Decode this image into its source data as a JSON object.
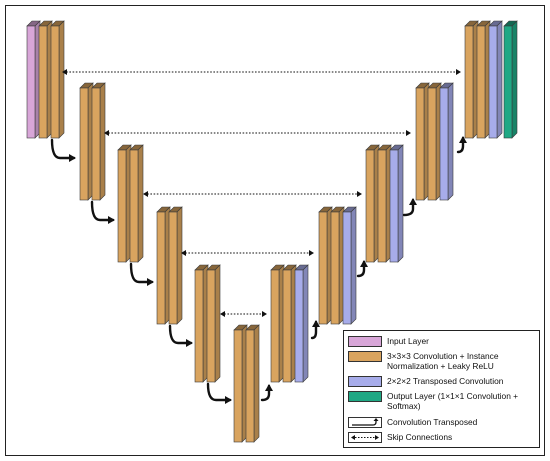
{
  "colors": {
    "input": "#d8a6d8",
    "conv": "#d9a45f",
    "transposed": "#a7acea",
    "output": "#1fa884"
  },
  "legend": {
    "input_layer": "Input Layer",
    "conv_block": "3×3×3 Convolution + Instance Normalization + Leaky ReLU",
    "transposed_conv": "2×2×2 Transposed Convolution",
    "output_layer": "Output Layer (1×1×1 Convolution + Softmax)",
    "conv_transposed_arrow": "Convolution Transposed",
    "skip_connections": "Skip Connections"
  },
  "icons": {
    "conv_transposed": "bent-arrow-icon",
    "skip": "double-dotted-arrow-icon"
  }
}
